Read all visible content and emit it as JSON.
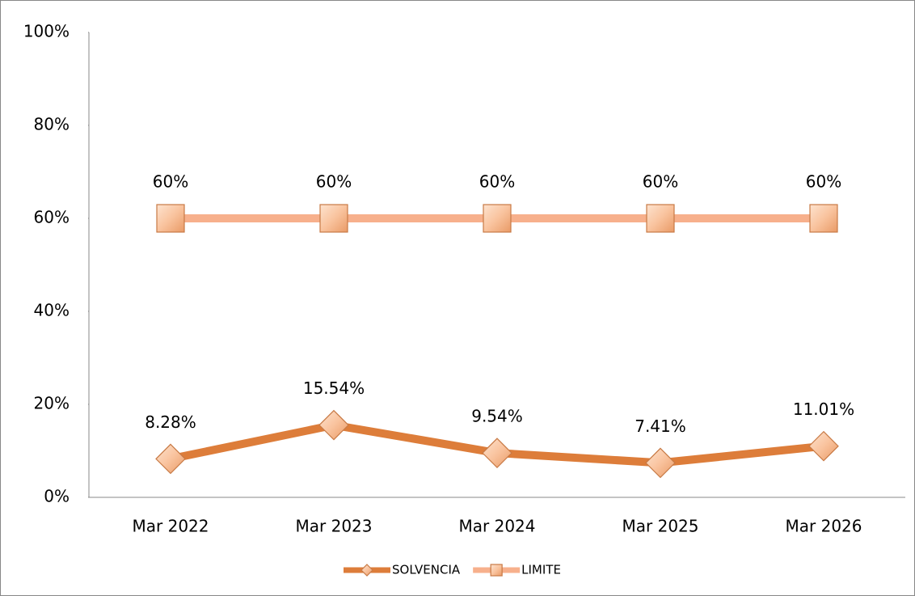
{
  "chart_data": {
    "type": "line",
    "categories": [
      "Mar 2022",
      "Mar 2023",
      "Mar 2024",
      "Mar 2025",
      "Mar 2026"
    ],
    "series": [
      {
        "name": "SOLVENCIA",
        "color": "#dd7d3a",
        "marker": "diamond",
        "values": [
          8.28,
          15.54,
          9.54,
          7.41,
          11.01
        ],
        "value_labels": [
          "8.28%",
          "15.54%",
          "9.54%",
          "7.41%",
          "11.01%"
        ]
      },
      {
        "name": "LIMITE",
        "color": "#f7b08c",
        "marker": "square",
        "values": [
          60,
          60,
          60,
          60,
          60
        ],
        "value_labels": [
          "60%",
          "60%",
          "60%",
          "60%",
          "60%"
        ]
      }
    ],
    "ylim": [
      0,
      100
    ],
    "yticks": [
      {
        "value": 0,
        "label": "0%"
      },
      {
        "value": 20,
        "label": "20%"
      },
      {
        "value": 40,
        "label": "40%"
      },
      {
        "value": 60,
        "label": "60%"
      },
      {
        "value": 80,
        "label": "80%"
      },
      {
        "value": 100,
        "label": "100%"
      }
    ],
    "grid": false,
    "legend": "bottom"
  }
}
